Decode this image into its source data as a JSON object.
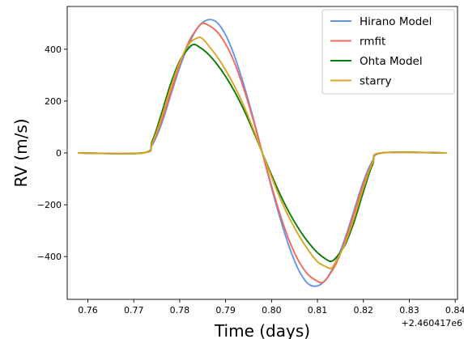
{
  "chart_data": {
    "type": "line",
    "title": "",
    "xlabel": "Time (days)",
    "ylabel": "RV (m/s)",
    "x_offset_label": "+2.460417e6",
    "xlim": [
      0.7555,
      0.8405
    ],
    "ylim": [
      -565,
      565
    ],
    "xticks": [
      0.76,
      0.77,
      0.78,
      0.79,
      0.8,
      0.81,
      0.82,
      0.83,
      0.84
    ],
    "xtick_labels": [
      "0.76",
      "0.77",
      "0.78",
      "0.79",
      "0.80",
      "0.81",
      "0.82",
      "0.83",
      "0.84"
    ],
    "yticks": [
      -400,
      -200,
      0,
      200,
      400
    ],
    "ytick_labels": [
      "−400",
      "−200",
      "0",
      "200",
      "400"
    ],
    "grid": false,
    "legend_position": "top-right",
    "series": [
      {
        "name": "Hirano Model",
        "color": "#6495ED",
        "points": [
          [
            0.758,
            0
          ],
          [
            0.772,
            0
          ],
          [
            0.774,
            30
          ],
          [
            0.776,
            110
          ],
          [
            0.778,
            220
          ],
          [
            0.78,
            330
          ],
          [
            0.782,
            420
          ],
          [
            0.784,
            485
          ],
          [
            0.786,
            513
          ],
          [
            0.788,
            505
          ],
          [
            0.79,
            455
          ],
          [
            0.792,
            370
          ],
          [
            0.794,
            260
          ],
          [
            0.796,
            135
          ],
          [
            0.798,
            0
          ],
          [
            0.8,
            -135
          ],
          [
            0.802,
            -260
          ],
          [
            0.804,
            -370
          ],
          [
            0.806,
            -455
          ],
          [
            0.808,
            -505
          ],
          [
            0.81,
            -513
          ],
          [
            0.812,
            -485
          ],
          [
            0.814,
            -420
          ],
          [
            0.816,
            -330
          ],
          [
            0.818,
            -220
          ],
          [
            0.82,
            -110
          ],
          [
            0.822,
            -30
          ],
          [
            0.824,
            0
          ],
          [
            0.838,
            0
          ]
        ]
      },
      {
        "name": "rmfit",
        "color": "#F0695A",
        "points": [
          [
            0.758,
            0
          ],
          [
            0.772,
            0
          ],
          [
            0.774,
            35
          ],
          [
            0.776,
            120
          ],
          [
            0.778,
            230
          ],
          [
            0.78,
            340
          ],
          [
            0.782,
            430
          ],
          [
            0.784,
            485
          ],
          [
            0.785,
            500
          ],
          [
            0.786,
            495
          ],
          [
            0.788,
            470
          ],
          [
            0.79,
            420
          ],
          [
            0.792,
            345
          ],
          [
            0.794,
            245
          ],
          [
            0.796,
            128
          ],
          [
            0.798,
            0
          ],
          [
            0.8,
            -128
          ],
          [
            0.802,
            -245
          ],
          [
            0.804,
            -345
          ],
          [
            0.806,
            -420
          ],
          [
            0.808,
            -470
          ],
          [
            0.81,
            -495
          ],
          [
            0.811,
            -500
          ],
          [
            0.812,
            -485
          ],
          [
            0.814,
            -430
          ],
          [
            0.816,
            -340
          ],
          [
            0.818,
            -230
          ],
          [
            0.82,
            -120
          ],
          [
            0.822,
            -35
          ],
          [
            0.824,
            0
          ],
          [
            0.838,
            0
          ]
        ]
      },
      {
        "name": "Ohta Model",
        "color": "#0A7A0A",
        "points": [
          [
            0.758,
            0
          ],
          [
            0.772,
            0
          ],
          [
            0.774,
            45
          ],
          [
            0.776,
            150
          ],
          [
            0.778,
            265
          ],
          [
            0.78,
            355
          ],
          [
            0.782,
            405
          ],
          [
            0.783,
            418
          ],
          [
            0.784,
            412
          ],
          [
            0.786,
            385
          ],
          [
            0.788,
            345
          ],
          [
            0.79,
            295
          ],
          [
            0.792,
            235
          ],
          [
            0.794,
            165
          ],
          [
            0.796,
            85
          ],
          [
            0.798,
            0
          ],
          [
            0.8,
            -85
          ],
          [
            0.802,
            -165
          ],
          [
            0.804,
            -235
          ],
          [
            0.806,
            -295
          ],
          [
            0.808,
            -345
          ],
          [
            0.81,
            -385
          ],
          [
            0.812,
            -412
          ],
          [
            0.813,
            -418
          ],
          [
            0.814,
            -405
          ],
          [
            0.816,
            -355
          ],
          [
            0.818,
            -265
          ],
          [
            0.82,
            -150
          ],
          [
            0.822,
            -45
          ],
          [
            0.824,
            0
          ],
          [
            0.838,
            0
          ]
        ]
      },
      {
        "name": "starry",
        "color": "#DAA520",
        "points": [
          [
            0.758,
            0
          ],
          [
            0.772,
            0
          ],
          [
            0.774,
            38
          ],
          [
            0.776,
            135
          ],
          [
            0.778,
            250
          ],
          [
            0.78,
            350
          ],
          [
            0.782,
            420
          ],
          [
            0.784,
            445
          ],
          [
            0.785,
            440
          ],
          [
            0.786,
            420
          ],
          [
            0.788,
            375
          ],
          [
            0.79,
            320
          ],
          [
            0.792,
            255
          ],
          [
            0.794,
            180
          ],
          [
            0.796,
            93
          ],
          [
            0.798,
            0
          ],
          [
            0.8,
            -93
          ],
          [
            0.802,
            -180
          ],
          [
            0.804,
            -255
          ],
          [
            0.806,
            -320
          ],
          [
            0.808,
            -375
          ],
          [
            0.81,
            -420
          ],
          [
            0.812,
            -440
          ],
          [
            0.813,
            -445
          ],
          [
            0.814,
            -420
          ],
          [
            0.816,
            -350
          ],
          [
            0.818,
            -250
          ],
          [
            0.82,
            -135
          ],
          [
            0.822,
            -38
          ],
          [
            0.824,
            0
          ],
          [
            0.838,
            0
          ]
        ]
      }
    ]
  }
}
